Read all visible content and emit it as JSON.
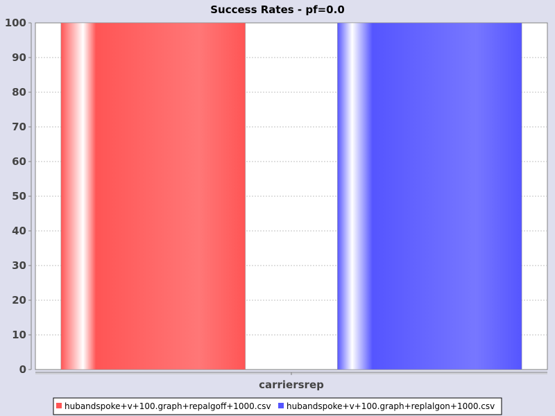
{
  "chart_data": {
    "type": "bar",
    "title": "Success Rates - pf=0.0",
    "xlabel": "",
    "ylabel": "",
    "categories": [
      "carriersrep"
    ],
    "ylim": [
      0,
      100
    ],
    "yticks": [
      0,
      10,
      20,
      30,
      40,
      50,
      60,
      70,
      80,
      90,
      100
    ],
    "grid": true,
    "legend_position": "bottom",
    "series": [
      {
        "name": "hubandspoke+v+100.graph+repalgoff+1000.csv",
        "values": [
          100
        ],
        "color": "#ff5555"
      },
      {
        "name": "hubandspoke+v+100.graph+replalgon+1000.csv",
        "values": [
          100
        ],
        "color": "#5555ff"
      }
    ]
  }
}
